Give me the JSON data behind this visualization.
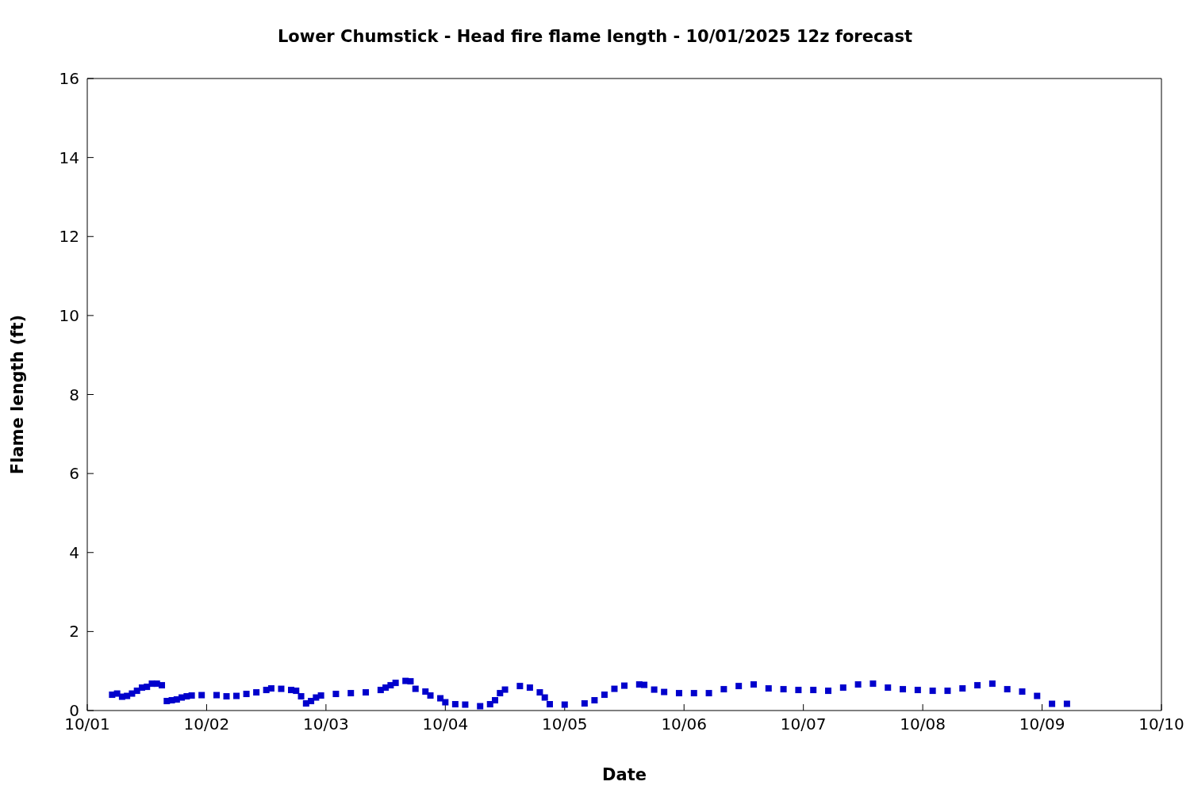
{
  "chart_data": {
    "type": "scatter",
    "title": "Lower Chumstick - Head fire flame length - 10/01/2025 12z forecast",
    "xlabel": "Date",
    "ylabel": "Flame length (ft)",
    "series": [
      {
        "color": "#0000cc",
        "x": [
          "2025-10-01T05:00",
          "2025-10-01T06:00",
          "2025-10-01T07:00",
          "2025-10-01T08:00",
          "2025-10-01T09:00",
          "2025-10-01T10:00",
          "2025-10-01T11:00",
          "2025-10-01T12:00",
          "2025-10-01T13:00",
          "2025-10-01T14:00",
          "2025-10-01T15:00",
          "2025-10-01T16:00",
          "2025-10-01T17:00",
          "2025-10-01T18:00",
          "2025-10-01T19:00",
          "2025-10-01T20:00",
          "2025-10-01T21:00",
          "2025-10-01T23:00",
          "2025-10-02T02:00",
          "2025-10-02T04:00",
          "2025-10-02T06:00",
          "2025-10-02T08:00",
          "2025-10-02T10:00",
          "2025-10-02T12:00",
          "2025-10-02T13:00",
          "2025-10-02T15:00",
          "2025-10-02T17:00",
          "2025-10-02T18:00",
          "2025-10-02T19:00",
          "2025-10-02T20:00",
          "2025-10-02T21:00",
          "2025-10-02T22:00",
          "2025-10-02T23:00",
          "2025-10-03T02:00",
          "2025-10-03T05:00",
          "2025-10-03T08:00",
          "2025-10-03T11:00",
          "2025-10-03T12:00",
          "2025-10-03T13:00",
          "2025-10-03T14:00",
          "2025-10-03T16:00",
          "2025-10-03T17:00",
          "2025-10-03T18:00",
          "2025-10-03T20:00",
          "2025-10-03T21:00",
          "2025-10-03T23:00",
          "2025-10-04T00:00",
          "2025-10-04T02:00",
          "2025-10-04T04:00",
          "2025-10-04T07:00",
          "2025-10-04T09:00",
          "2025-10-04T10:00",
          "2025-10-04T11:00",
          "2025-10-04T12:00",
          "2025-10-04T15:00",
          "2025-10-04T17:00",
          "2025-10-04T19:00",
          "2025-10-04T20:00",
          "2025-10-04T21:00",
          "2025-10-05T00:00",
          "2025-10-05T04:00",
          "2025-10-05T06:00",
          "2025-10-05T08:00",
          "2025-10-05T10:00",
          "2025-10-05T12:00",
          "2025-10-05T15:00",
          "2025-10-05T16:00",
          "2025-10-05T18:00",
          "2025-10-05T20:00",
          "2025-10-05T23:00",
          "2025-10-06T02:00",
          "2025-10-06T05:00",
          "2025-10-06T08:00",
          "2025-10-06T11:00",
          "2025-10-06T14:00",
          "2025-10-06T17:00",
          "2025-10-06T20:00",
          "2025-10-06T23:00",
          "2025-10-07T02:00",
          "2025-10-07T05:00",
          "2025-10-07T08:00",
          "2025-10-07T11:00",
          "2025-10-07T14:00",
          "2025-10-07T17:00",
          "2025-10-07T20:00",
          "2025-10-07T23:00",
          "2025-10-08T02:00",
          "2025-10-08T05:00",
          "2025-10-08T08:00",
          "2025-10-08T11:00",
          "2025-10-08T14:00",
          "2025-10-08T17:00",
          "2025-10-08T20:00",
          "2025-10-08T23:00",
          "2025-10-09T02:00",
          "2025-10-09T05:00"
        ],
        "values": [
          0.4,
          0.43,
          0.35,
          0.37,
          0.43,
          0.5,
          0.58,
          0.6,
          0.68,
          0.68,
          0.64,
          0.24,
          0.26,
          0.28,
          0.33,
          0.36,
          0.38,
          0.39,
          0.39,
          0.36,
          0.37,
          0.42,
          0.46,
          0.52,
          0.56,
          0.55,
          0.52,
          0.5,
          0.36,
          0.18,
          0.24,
          0.33,
          0.38,
          0.42,
          0.44,
          0.46,
          0.52,
          0.58,
          0.64,
          0.7,
          0.75,
          0.74,
          0.55,
          0.48,
          0.38,
          0.31,
          0.21,
          0.16,
          0.15,
          0.11,
          0.16,
          0.26,
          0.44,
          0.53,
          0.62,
          0.58,
          0.46,
          0.33,
          0.16,
          0.15,
          0.18,
          0.26,
          0.4,
          0.55,
          0.63,
          0.66,
          0.65,
          0.53,
          0.47,
          0.44,
          0.44,
          0.44,
          0.54,
          0.62,
          0.66,
          0.56,
          0.54,
          0.52,
          0.52,
          0.5,
          0.58,
          0.66,
          0.68,
          0.58,
          0.54,
          0.52,
          0.5,
          0.5,
          0.56,
          0.64,
          0.68,
          0.54,
          0.48,
          0.37,
          0.17,
          0.17
        ]
      }
    ],
    "xlim": [
      "2025-10-01",
      "2025-10-10"
    ],
    "xticks": [
      {
        "value": "2025-10-01",
        "label": "10/01"
      },
      {
        "value": "2025-10-02",
        "label": "10/02"
      },
      {
        "value": "2025-10-03",
        "label": "10/03"
      },
      {
        "value": "2025-10-04",
        "label": "10/04"
      },
      {
        "value": "2025-10-05",
        "label": "10/05"
      },
      {
        "value": "2025-10-06",
        "label": "10/06"
      },
      {
        "value": "2025-10-07",
        "label": "10/07"
      },
      {
        "value": "2025-10-08",
        "label": "10/08"
      },
      {
        "value": "2025-10-09",
        "label": "10/09"
      },
      {
        "value": "2025-10-10",
        "label": "10/10"
      }
    ],
    "ylim": [
      0,
      16
    ],
    "yticks": [
      0,
      2,
      4,
      6,
      8,
      10,
      12,
      14,
      16
    ],
    "marker": "square",
    "grid": false,
    "legend": false
  }
}
